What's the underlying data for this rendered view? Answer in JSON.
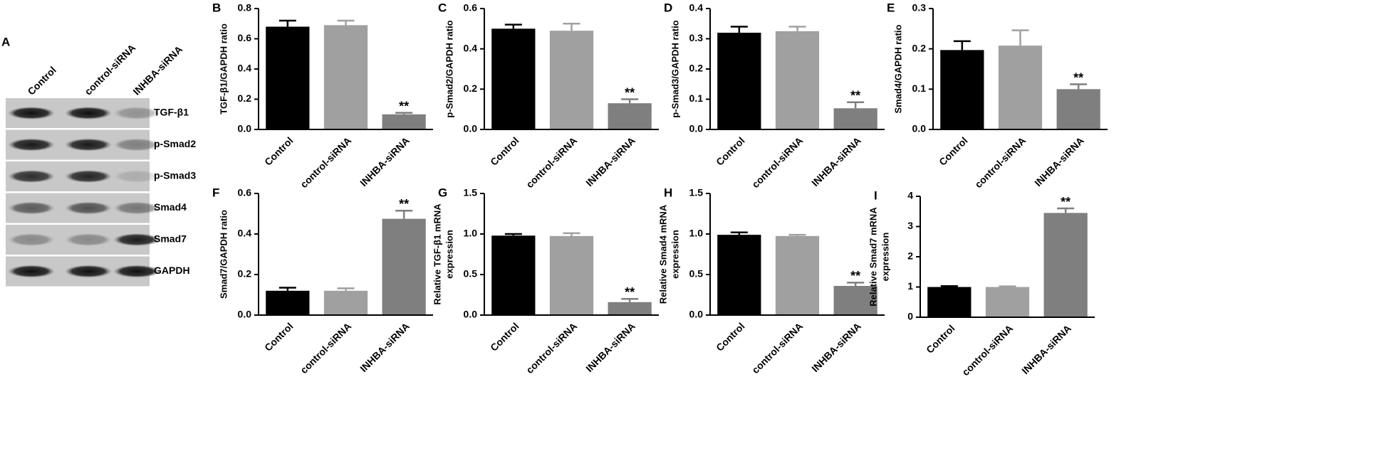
{
  "panel_a": {
    "panel_label": "A",
    "lanes": [
      "Control",
      "control-siRNA",
      "INHBA-siRNA"
    ],
    "bands": [
      "TGF-β1",
      "p-Smad2",
      "p-Smad3",
      "Smad4",
      "Smad7",
      "GAPDH"
    ]
  },
  "chart_data": [
    {
      "type": "bar",
      "panel_label": "B",
      "ylabel": [
        "TGF-β1/GAPDH ratio"
      ],
      "categories": [
        "Control",
        "control-siRNA",
        "INHBA-siRNA"
      ],
      "values": [
        0.68,
        0.69,
        0.1
      ],
      "errors": [
        0.04,
        0.03,
        0.01
      ],
      "colors": [
        "#000000",
        "#a0a0a0",
        "#7f7f7f"
      ],
      "annotations": [
        null,
        null,
        "**"
      ],
      "ylim": [
        0,
        0.8
      ],
      "yticks": [
        {
          "value": 0,
          "label": "0.0"
        },
        0.2,
        0.4,
        0.6,
        0.8
      ]
    },
    {
      "type": "bar",
      "panel_label": "C",
      "ylabel": [
        "p-Smad2/GAPDH ratio"
      ],
      "categories": [
        "Control",
        "control-siRNA",
        "INHBA-siRNA"
      ],
      "values": [
        0.5,
        0.49,
        0.13
      ],
      "errors": [
        0.02,
        0.035,
        0.02
      ],
      "colors": [
        "#000000",
        "#a0a0a0",
        "#7f7f7f"
      ],
      "annotations": [
        null,
        null,
        "**"
      ],
      "ylim": [
        0,
        0.6
      ],
      "yticks": [
        {
          "value": 0,
          "label": "0.0"
        },
        0.2,
        0.4,
        0.6
      ]
    },
    {
      "type": "bar",
      "panel_label": "D",
      "ylabel": [
        "p-Smad3/GAPDH ratio"
      ],
      "categories": [
        "Control",
        "control-siRNA",
        "INHBA-siRNA"
      ],
      "values": [
        0.32,
        0.325,
        0.07
      ],
      "errors": [
        0.02,
        0.015,
        0.02
      ],
      "colors": [
        "#000000",
        "#a0a0a0",
        "#7f7f7f"
      ],
      "annotations": [
        null,
        null,
        "**"
      ],
      "ylim": [
        0,
        0.4
      ],
      "yticks": [
        {
          "value": 0,
          "label": "0.0"
        },
        0.1,
        0.2,
        0.3,
        0.4
      ]
    },
    {
      "type": "bar",
      "panel_label": "E",
      "ylabel": [
        "Smad4/GAPDH ratio"
      ],
      "categories": [
        "Control",
        "control-siRNA",
        "INHBA-siRNA"
      ],
      "values": [
        0.197,
        0.208,
        0.1
      ],
      "errors": [
        0.022,
        0.038,
        0.012
      ],
      "colors": [
        "#000000",
        "#a0a0a0",
        "#7f7f7f"
      ],
      "annotations": [
        null,
        null,
        "**"
      ],
      "ylim": [
        0,
        0.3
      ],
      "yticks": [
        {
          "value": 0,
          "label": "0.0"
        },
        0.1,
        0.2,
        0.3
      ]
    },
    {
      "type": "bar",
      "panel_label": "F",
      "ylabel": [
        "Smad7/GAPDH ratio"
      ],
      "categories": [
        "Control",
        "control-siRNA",
        "INHBA-siRNA"
      ],
      "values": [
        0.12,
        0.12,
        0.475
      ],
      "errors": [
        0.015,
        0.012,
        0.04
      ],
      "colors": [
        "#000000",
        "#a0a0a0",
        "#7f7f7f"
      ],
      "annotations": [
        null,
        null,
        "**"
      ],
      "ylim": [
        0,
        0.6
      ],
      "yticks": [
        {
          "value": 0,
          "label": "0.0"
        },
        0.2,
        0.4,
        0.6
      ]
    },
    {
      "type": "bar",
      "panel_label": "G",
      "ylabel": [
        "Relative TGF-β1 mRNA",
        "expression"
      ],
      "categories": [
        "Control",
        "control-siRNA",
        "INHBA-siRNA"
      ],
      "values": [
        0.98,
        0.975,
        0.16
      ],
      "errors": [
        0.02,
        0.035,
        0.04
      ],
      "colors": [
        "#000000",
        "#a0a0a0",
        "#7f7f7f"
      ],
      "annotations": [
        null,
        null,
        "**"
      ],
      "ylim": [
        0,
        1.5
      ],
      "yticks": [
        {
          "value": 0,
          "label": "0.0"
        },
        0.5,
        {
          "value": 1,
          "label": "1.0"
        },
        1.5
      ]
    },
    {
      "type": "bar",
      "panel_label": "H",
      "ylabel": [
        "Relative Smad4 mRNA",
        "expression"
      ],
      "categories": [
        "Control",
        "control-siRNA",
        "INHBA-siRNA"
      ],
      "values": [
        0.99,
        0.975,
        0.36
      ],
      "errors": [
        0.03,
        0.015,
        0.04
      ],
      "colors": [
        "#000000",
        "#a0a0a0",
        "#7f7f7f"
      ],
      "annotations": [
        null,
        null,
        "**"
      ],
      "ylim": [
        0,
        1.5
      ],
      "yticks": [
        {
          "value": 0,
          "label": "0.0"
        },
        0.5,
        {
          "value": 1,
          "label": "1.0"
        },
        1.5
      ]
    },
    {
      "type": "bar",
      "panel_label": "I",
      "ylabel": [
        "Relative Smad7 mRNA",
        "expression"
      ],
      "categories": [
        "Control",
        "control-siRNA",
        "INHBA-siRNA"
      ],
      "values": [
        1.0,
        1.0,
        3.45
      ],
      "errors": [
        0.03,
        0.02,
        0.15
      ],
      "colors": [
        "#000000",
        "#a0a0a0",
        "#7f7f7f"
      ],
      "annotations": [
        null,
        null,
        "**"
      ],
      "ylim": [
        0,
        4
      ],
      "yticks": [
        0,
        1,
        2,
        3,
        4
      ]
    }
  ]
}
